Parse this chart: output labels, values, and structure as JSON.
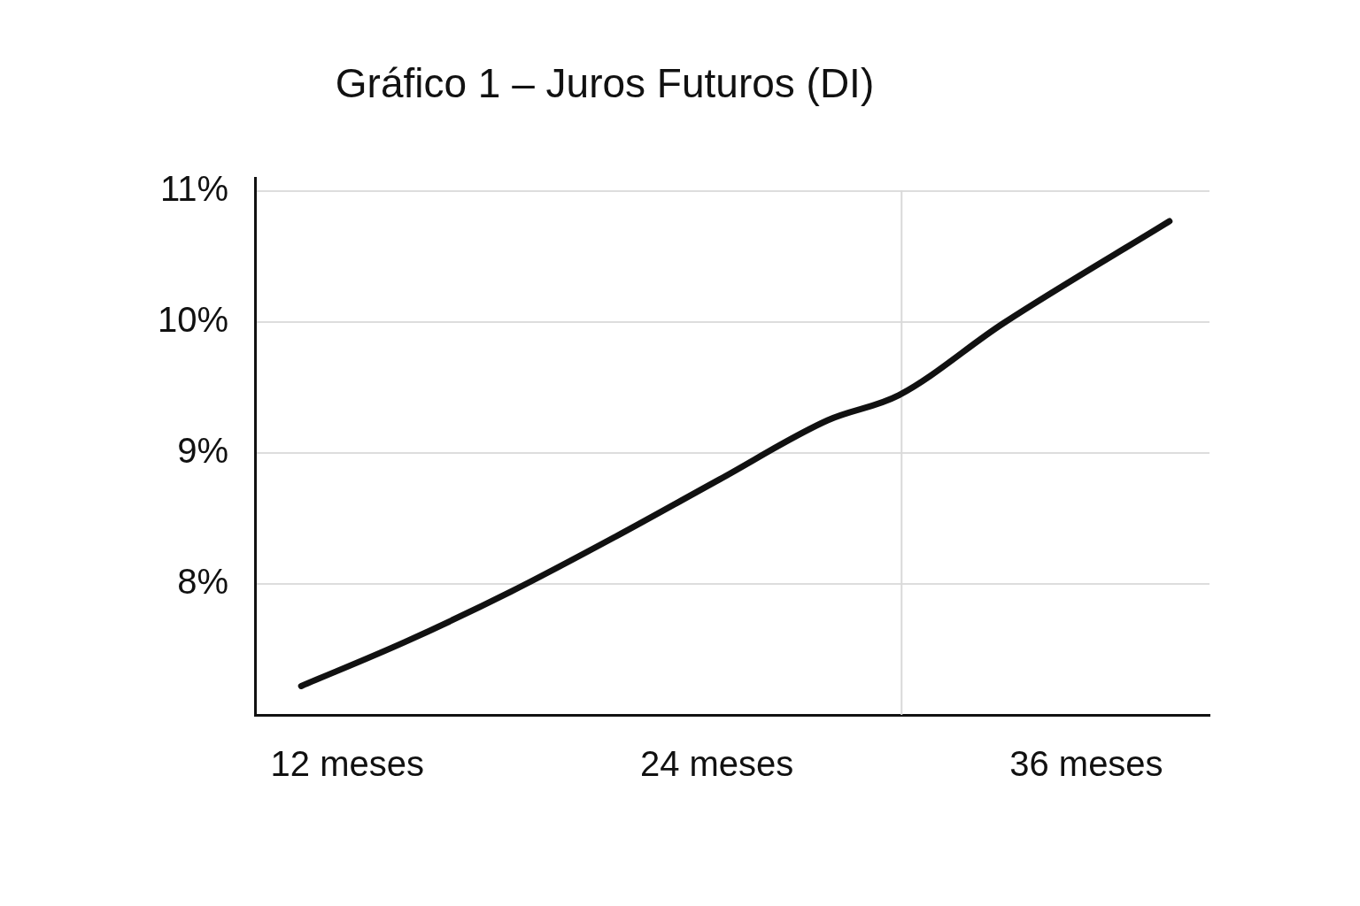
{
  "chart_data": {
    "type": "line",
    "title": "Gráfico 1 – Juros Futuros (DI)",
    "x": [
      10.5,
      13.9,
      17.3,
      20.7,
      24.1,
      27.6,
      29.9,
      33.3,
      38.7
    ],
    "series": [
      {
        "color": "#111111",
        "values": [
          7.22,
          7.56,
          7.94,
          8.36,
          8.8,
          9.25,
          9.44,
          9.99,
          10.77
        ]
      }
    ],
    "xlim": [
      9,
      40
    ],
    "xticks": [
      {
        "value": 12,
        "label": "12 meses"
      },
      {
        "value": 24,
        "label": "24 meses"
      },
      {
        "value": 36,
        "label": "36 meses"
      }
    ],
    "ylim": [
      7,
      11.1
    ],
    "yticks": [
      {
        "value": 8,
        "label": "8%"
      },
      {
        "value": 9,
        "label": "9%"
      },
      {
        "value": 10,
        "label": "10%"
      },
      {
        "value": 11,
        "label": "11%"
      }
    ],
    "ref_lines": [
      {
        "axis": "x",
        "value": 30,
        "color": "#d9d9d9"
      }
    ],
    "grid": "y",
    "legend": false,
    "marker": "none",
    "line_style": "solid"
  }
}
